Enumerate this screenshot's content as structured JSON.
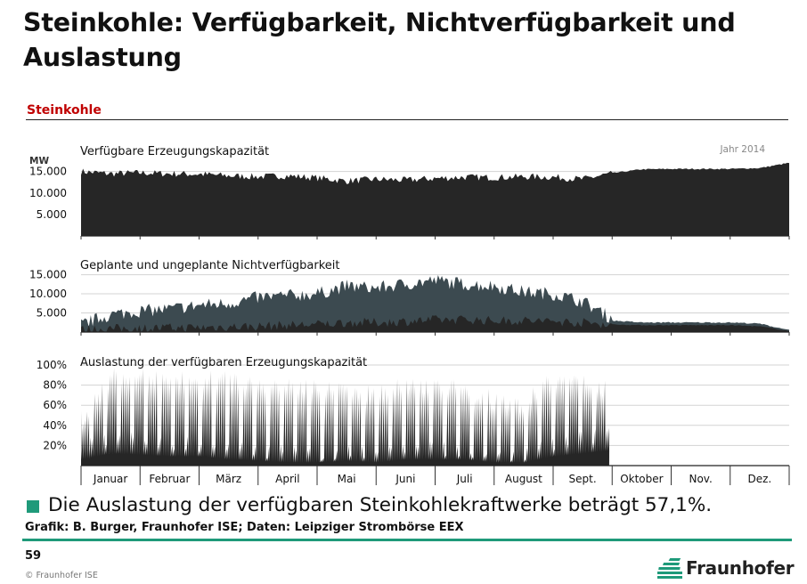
{
  "slide": {
    "title": "Steinkohle: Verfügbarkeit, Nichtverfügbarkeit und Auslastung",
    "section_label": "Steinkohle",
    "bullet": "Die Auslastung der verfügbaren Steinkohlekraftwerke beträgt 57,1%.",
    "credit": "Grafik: B. Burger, Fraunhofer ISE; Daten: Leipziger Strombörse EEX",
    "page_number": "59",
    "copyright": "© Fraunhofer ISE",
    "logo_text": "Fraunhofer"
  },
  "colors": {
    "bar": "#262626",
    "unavailable_planned": "#3c4a50",
    "unavailable_unplanned": "#262626",
    "gridline": "#d3d3d3",
    "section_label": "#c00000",
    "accent": "#1f9a7a"
  },
  "chart_data": [
    {
      "type": "area",
      "title": "Verfügbare Erzeugungskapazität",
      "year_label": "Jahr 2014",
      "ylabel": "MW",
      "ylim": [
        0,
        17000
      ],
      "yticks": [
        5000,
        10000,
        15000
      ],
      "ytick_labels": [
        "5.000",
        "10.000",
        "15.000"
      ],
      "x_unit": "Monat (Jan–Dez 2014)",
      "months": [
        "Januar",
        "Februar",
        "März",
        "April",
        "Mai",
        "Juni",
        "Juli",
        "August",
        "Sept.",
        "Oktober",
        "Nov.",
        "Dez."
      ],
      "series": [
        {
          "month_index": [
            0,
            0.5,
            1,
            1.5,
            2,
            2.5,
            3,
            3.5,
            4,
            4.5,
            5,
            5.5,
            6,
            6.5,
            7,
            7.5,
            8,
            8.5,
            9,
            9.5,
            10,
            10.5,
            11,
            11.5,
            12
          ],
          "values": [
            15000,
            14500,
            14700,
            14500,
            14400,
            14000,
            13800,
            14000,
            13500,
            12800,
            13200,
            13000,
            13400,
            13700,
            13600,
            13800,
            13700,
            13200,
            14600,
            15500,
            15600,
            15600,
            15600,
            15800,
            17000
          ]
        }
      ]
    },
    {
      "type": "area",
      "title": "Geplante und ungeplante Nichtverfügbarkeit",
      "ylim": [
        0,
        17000
      ],
      "yticks": [
        5000,
        10000,
        15000
      ],
      "ytick_labels": [
        "5.000",
        "10.000",
        "15.000"
      ],
      "months": [
        "Januar",
        "Februar",
        "März",
        "April",
        "Mai",
        "Juni",
        "Juli",
        "August",
        "Sept.",
        "Oktober",
        "Nov.",
        "Dez."
      ],
      "series": [
        {
          "name": "",
          "month_index": [
            0,
            0.5,
            1,
            1.5,
            2,
            2.5,
            3,
            3.5,
            4,
            4.5,
            5,
            5.5,
            6,
            6.5,
            7,
            7.5,
            8,
            8.5,
            9,
            9.5,
            10,
            10.5,
            11,
            11.5,
            12
          ],
          "values": [
            1500,
            4000,
            5000,
            5500,
            6500,
            7000,
            8500,
            9000,
            9500,
            11500,
            11000,
            12000,
            13000,
            12000,
            11500,
            10000,
            9500,
            7500,
            3000,
            2500,
            2500,
            2500,
            2500,
            2200,
            500
          ]
        },
        {
          "name": "",
          "month_index": [
            0,
            0.5,
            1,
            1.5,
            2,
            2.5,
            3,
            3.5,
            4,
            4.5,
            5,
            5.5,
            6,
            6.5,
            7,
            7.5,
            8,
            8.5,
            9,
            9.5,
            10,
            10.5,
            11,
            11.5,
            12
          ],
          "values": [
            600,
            900,
            1000,
            1100,
            1200,
            1400,
            1500,
            1800,
            2000,
            2500,
            2500,
            2800,
            3200,
            3300,
            3000,
            3000,
            2800,
            2500,
            2000,
            1800,
            1800,
            1800,
            1800,
            1500,
            300
          ]
        }
      ]
    },
    {
      "type": "area",
      "title": "Auslastung der verfügbaren Erzeugungskapazität",
      "ylim": [
        0,
        100
      ],
      "yticks": [
        20,
        40,
        60,
        80,
        100
      ],
      "ytick_labels": [
        "20%",
        "40%",
        "60%",
        "80%",
        "100%"
      ],
      "months": [
        "Januar",
        "Februar",
        "März",
        "April",
        "Mai",
        "Juni",
        "Juli",
        "August",
        "Sept.",
        "Oktober",
        "Nov.",
        "Dez."
      ],
      "series": [
        {
          "month_index": [
            0,
            0.5,
            1,
            1.5,
            2,
            2.5,
            3,
            3.5,
            4,
            4.5,
            5,
            5.5,
            6,
            6.5,
            7,
            7.5,
            8,
            8.5,
            8.95
          ],
          "peak_values": [
            55,
            98,
            97,
            96,
            95,
            96,
            92,
            90,
            85,
            88,
            80,
            92,
            88,
            85,
            75,
            70,
            95,
            92,
            85
          ],
          "trough_values": [
            10,
            20,
            18,
            15,
            15,
            10,
            8,
            5,
            5,
            8,
            5,
            10,
            10,
            10,
            5,
            5,
            15,
            20,
            25
          ]
        }
      ],
      "mean_utilization_percent": 57.1
    }
  ]
}
